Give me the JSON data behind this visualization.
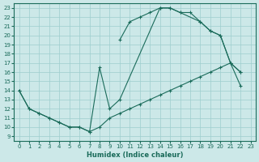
{
  "xlabel": "Humidex (Indice chaleur)",
  "xlim": [
    -0.5,
    23.5
  ],
  "ylim": [
    8.5,
    23.5
  ],
  "xticks": [
    0,
    1,
    2,
    3,
    4,
    5,
    6,
    7,
    8,
    9,
    10,
    11,
    12,
    13,
    14,
    15,
    16,
    17,
    18,
    19,
    20,
    21,
    22,
    23
  ],
  "yticks": [
    9,
    10,
    11,
    12,
    13,
    14,
    15,
    16,
    17,
    18,
    19,
    20,
    21,
    22,
    23
  ],
  "bg_color": "#cce8e8",
  "grid_color": "#9ecece",
  "line_color": "#1a6b5a",
  "curve_upper_x": [
    10,
    11,
    12,
    13,
    14,
    15,
    16,
    17,
    18,
    19,
    20,
    21,
    22
  ],
  "curve_upper_y": [
    19.5,
    21.5,
    22,
    22.5,
    23,
    23,
    22.5,
    22.5,
    21.5,
    20.5,
    20,
    17,
    16
  ],
  "curve_lower_x": [
    0,
    1,
    2,
    3,
    4,
    5,
    6,
    7,
    8,
    9,
    10,
    11,
    12,
    13,
    14,
    15,
    16,
    17,
    18,
    19,
    20,
    21,
    22
  ],
  "curve_lower_y": [
    14,
    12,
    11.5,
    11,
    10.5,
    10,
    10,
    9.5,
    10,
    11,
    11.5,
    12,
    12.5,
    13,
    13.5,
    14,
    14.5,
    15,
    15.5,
    16,
    16.5,
    17,
    14.5
  ],
  "curve_zigzag_x": [
    0,
    1,
    2,
    3,
    4,
    5,
    6,
    7,
    8,
    9,
    10,
    14,
    15,
    16,
    18,
    19,
    20,
    21,
    22
  ],
  "curve_zigzag_y": [
    14,
    12,
    11.5,
    11,
    10.5,
    10,
    10,
    9.5,
    16.5,
    12,
    13,
    23,
    23,
    22.5,
    21.5,
    20.5,
    20,
    17,
    16
  ]
}
